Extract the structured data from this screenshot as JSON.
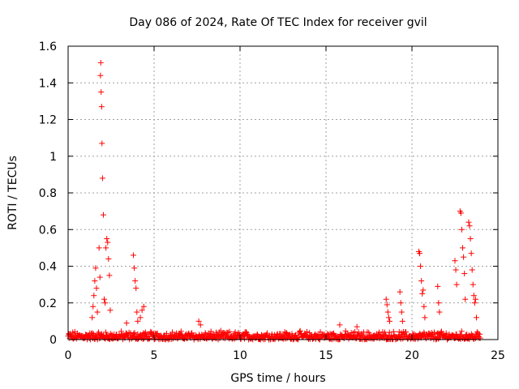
{
  "chart_data": {
    "type": "scatter",
    "title": "Day 086 of 2024, Rate Of TEC Index for receiver gvil",
    "xlabel": "GPS time / hours",
    "ylabel": "ROTI / TECUs",
    "xlim": [
      0,
      25
    ],
    "ylim": [
      0,
      1.6
    ],
    "x_ticks": [
      "0",
      "5",
      "10",
      "15",
      "20",
      "25"
    ],
    "y_ticks": [
      "0",
      "0.2",
      "0.4",
      "0.6",
      "0.8",
      "1",
      "1.2",
      "1.4",
      "1.6"
    ],
    "x_tick_values": [
      0,
      5,
      10,
      15,
      20,
      25
    ],
    "y_tick_values": [
      0,
      0.2,
      0.4,
      0.6,
      0.8,
      1.0,
      1.2,
      1.4,
      1.6
    ],
    "grid": true,
    "marker": "+",
    "color": "#ff0000",
    "series": [
      {
        "name": "ROTI",
        "x": [
          1.4,
          1.45,
          1.5,
          1.55,
          1.6,
          1.65,
          1.7,
          1.8,
          1.85,
          1.88,
          1.9,
          1.92,
          1.95,
          1.97,
          2.0,
          2.05,
          2.1,
          2.15,
          2.2,
          2.25,
          2.3,
          2.35,
          2.4,
          2.45,
          3.4,
          3.8,
          3.85,
          3.9,
          3.95,
          4.0,
          4.05,
          4.2,
          4.3,
          4.4,
          7.6,
          7.7,
          15.8,
          16.8,
          18.5,
          18.55,
          18.6,
          18.65,
          18.7,
          19.3,
          19.35,
          19.4,
          19.45,
          20.4,
          20.45,
          20.5,
          20.55,
          20.6,
          20.65,
          20.7,
          20.75,
          21.5,
          21.55,
          21.6,
          22.5,
          22.55,
          22.6,
          22.8,
          22.85,
          22.9,
          22.95,
          23.0,
          23.05,
          23.1,
          23.3,
          23.35,
          23.4,
          23.45,
          23.5,
          23.55,
          23.6,
          23.65,
          23.7,
          23.75
        ],
        "y": [
          0.12,
          0.18,
          0.24,
          0.32,
          0.39,
          0.28,
          0.15,
          0.5,
          0.34,
          1.44,
          1.51,
          1.35,
          1.27,
          1.07,
          0.88,
          0.68,
          0.22,
          0.2,
          0.5,
          0.55,
          0.53,
          0.44,
          0.35,
          0.16,
          0.09,
          0.46,
          0.39,
          0.32,
          0.28,
          0.15,
          0.1,
          0.12,
          0.16,
          0.18,
          0.1,
          0.08,
          0.08,
          0.07,
          0.22,
          0.19,
          0.15,
          0.12,
          0.1,
          0.26,
          0.2,
          0.15,
          0.1,
          0.48,
          0.47,
          0.4,
          0.32,
          0.25,
          0.27,
          0.18,
          0.12,
          0.29,
          0.2,
          0.15,
          0.43,
          0.38,
          0.3,
          0.7,
          0.69,
          0.6,
          0.5,
          0.45,
          0.36,
          0.22,
          0.64,
          0.62,
          0.55,
          0.47,
          0.38,
          0.3,
          0.24,
          0.2,
          0.22,
          0.12
        ]
      }
    ],
    "baseline": [
      {
        "x_start": 0.0,
        "x_end": 24.0,
        "y_min": 0.0,
        "y_max": 0.05,
        "density": 0.03
      }
    ]
  }
}
